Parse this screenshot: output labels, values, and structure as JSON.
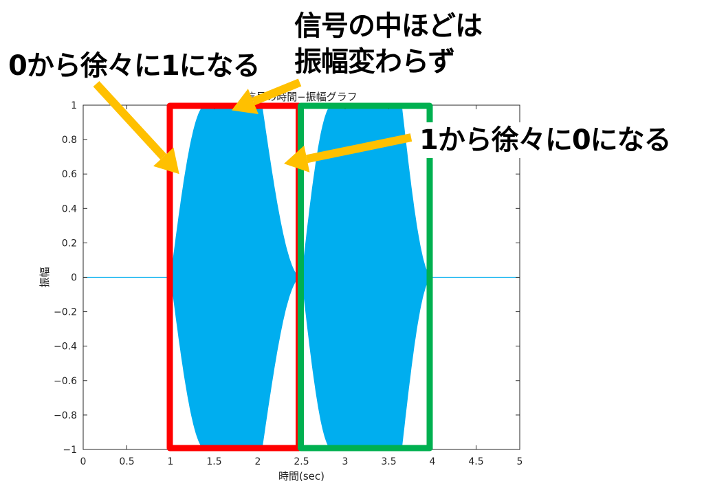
{
  "chart_data": {
    "type": "line",
    "title": "信号の時間−振幅グラフ",
    "xlabel": "時間(sec)",
    "ylabel": "振幅",
    "xlim": [
      0,
      5
    ],
    "ylim": [
      -1,
      1
    ],
    "xticks": [
      0,
      0.5,
      1,
      1.5,
      2,
      2.5,
      3,
      3.5,
      4,
      4.5,
      5
    ],
    "xtick_labels": [
      "0",
      "0.5",
      "1",
      "1.5",
      "2",
      "2.5",
      "3",
      "3.5",
      "4",
      "4.5",
      "5"
    ],
    "yticks": [
      1,
      0.8,
      0.6,
      0.4,
      0.2,
      0,
      -0.2,
      -0.4,
      -0.6,
      -0.8,
      -1
    ],
    "ytick_labels": [
      "1",
      "0.8",
      "0.6",
      "0.4",
      "0.2",
      "0",
      "−0.2",
      "−0.4",
      "−0.6",
      "−0.8",
      "−1"
    ],
    "grid": false,
    "series": [
      {
        "color": "#00aeef",
        "signal_start": 1,
        "signal_end": 4,
        "envelope": [
          {
            "t": 1.0,
            "a": 0.0
          },
          {
            "t": 1.4,
            "a": 1.0
          },
          {
            "t": 2.05,
            "a": 1.0
          },
          {
            "t": 2.5,
            "a": 0.0
          },
          {
            "t": 2.85,
            "a": 1.0
          },
          {
            "t": 3.65,
            "a": 1.0
          },
          {
            "t": 4.0,
            "a": 0.0
          }
        ]
      }
    ],
    "highlight_boxes": [
      {
        "name": "red-box",
        "x_start": 1,
        "x_end": 2.5,
        "color": "#ff0000"
      },
      {
        "name": "green-box",
        "x_start": 2.5,
        "x_end": 4,
        "color": "#00b050"
      }
    ],
    "annotations": [
      {
        "text": "0から徐々に1になる",
        "points_to_t": 1.1,
        "points_to_a": 0.6
      },
      {
        "text": "信号の中ほどは\n振幅変わらず",
        "points_to_t": 1.7,
        "points_to_a": 0.97
      },
      {
        "text": "1から徐々に0になる",
        "points_to_t": 2.3,
        "points_to_a": 0.66
      }
    ],
    "arrow_color": "#ffc000"
  }
}
